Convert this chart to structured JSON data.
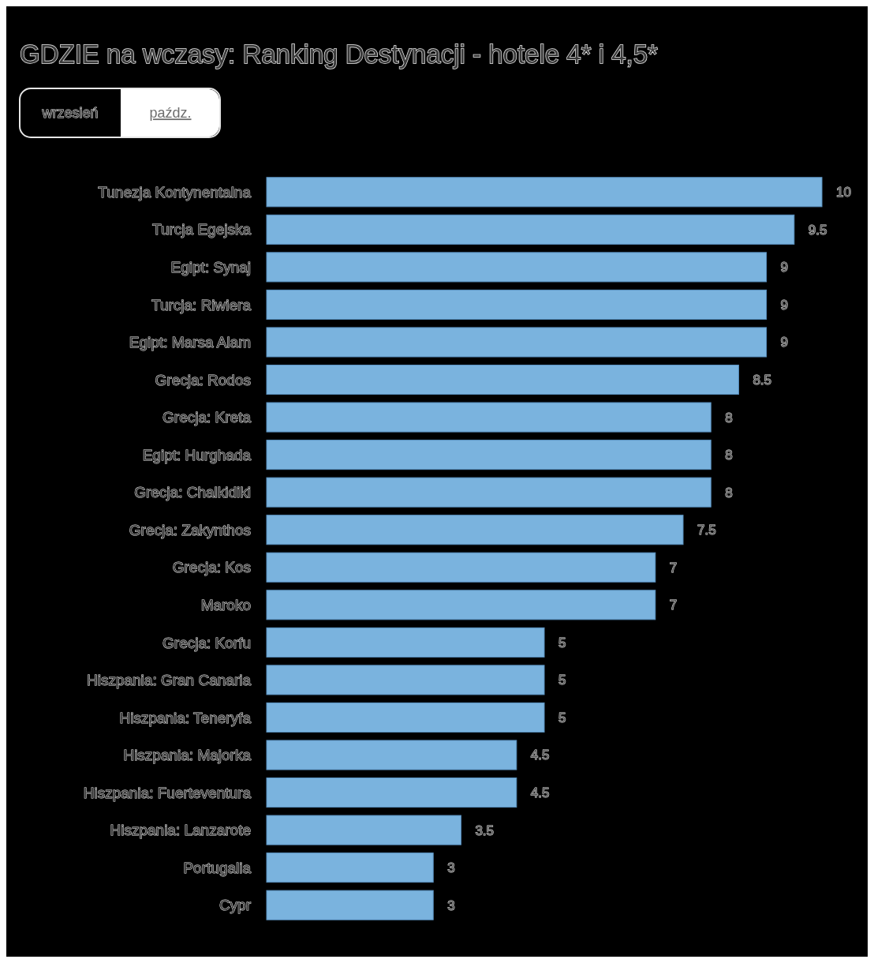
{
  "chart_data": {
    "type": "bar",
    "orientation": "horizontal",
    "title": "GDZIE na wczasy: Ranking Destynacji - hotele 4* i 4,5*",
    "annotations": [
      "wrzesień",
      "paźdz."
    ],
    "categories": [
      "Tunezja Kontynentalna",
      "Turcja Egejska",
      "Egipt: Synaj",
      "Turcja: Riwiera",
      "Egipt: Marsa Alam",
      "Grecja: Rodos",
      "Grecja: Kreta",
      "Egipt: Hurghada",
      "Grecja: Chalkidiki",
      "Grecja: Zakynthos",
      "Grecja: Kos",
      "Maroko",
      "Grecja: Korfu",
      "Hiszpania: Gran Canaria",
      "Hiszpania: Teneryfa",
      "Hiszpania: Majorka",
      "Hiszpania: Fuerteventura",
      "Hiszpania: Lanzarote",
      "Portugalia",
      "Cypr"
    ],
    "values": [
      10,
      9.5,
      9,
      9,
      9,
      8.5,
      8,
      8,
      8,
      7.5,
      7,
      7,
      5,
      5,
      5,
      4.5,
      4.5,
      3.5,
      3,
      3
    ],
    "color": "#7ab3de",
    "data_labels": true,
    "tick_labels": "y"
  }
}
